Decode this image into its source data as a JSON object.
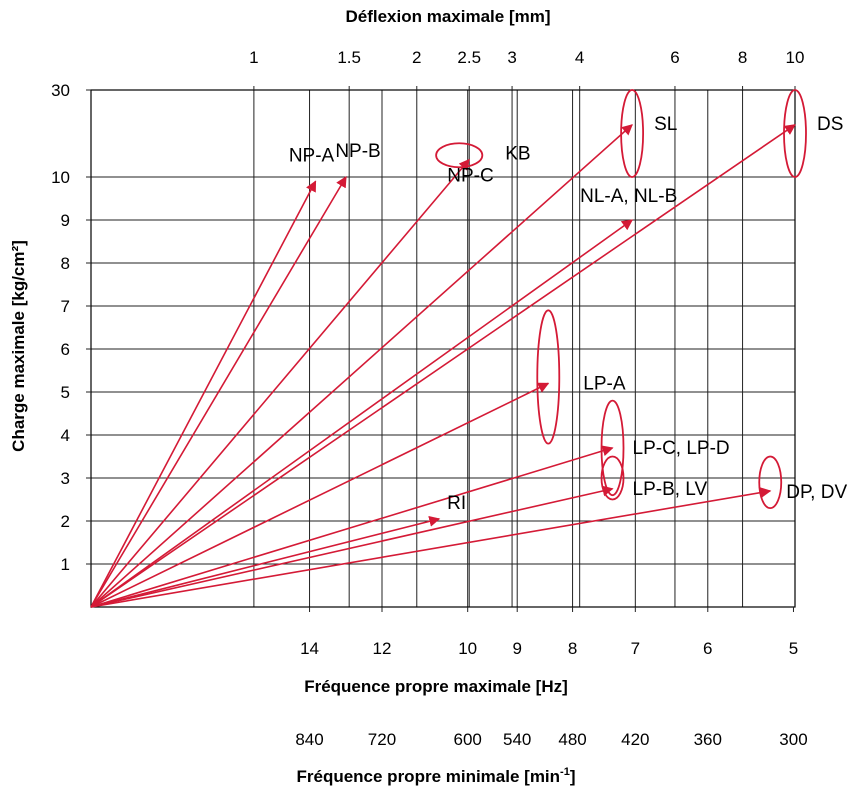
{
  "chart_data": {
    "type": "scatter",
    "title": "",
    "top_axis_title": "Déflexion maximale  [mm]",
    "top_ticks": [
      "1",
      "1.5",
      "2",
      "2.5",
      "3",
      "4",
      "6",
      "8",
      "10"
    ],
    "top_tick_values": [
      1,
      1.5,
      2,
      2.5,
      3,
      4,
      6,
      8,
      10
    ],
    "xlabel": "Fréquence propre maximale [Hz]",
    "x_ticks": [
      "14",
      "12",
      "10",
      "9",
      "8",
      "7",
      "6",
      "5"
    ],
    "x_tick_values": [
      14,
      12,
      10,
      9,
      8,
      7,
      6,
      5
    ],
    "x_scale": "frequency = 15.76 / sqrt(deflexion_mm)",
    "x_range_deflexion_mm": [
      0.5,
      10
    ],
    "second_x_axis_title": "Fréquence propre minimale [min",
    "second_x_axis_title_sup": "-1",
    "second_x_axis_title_end": "]",
    "rpm_ticks": [
      "840",
      "720",
      "600",
      "540",
      "480",
      "420",
      "360",
      "300"
    ],
    "rpm_tick_values": [
      840,
      720,
      600,
      540,
      480,
      420,
      360,
      300
    ],
    "ylabel": "Charge maximale  [kg/cm²]",
    "y_ticks": [
      "30",
      "10",
      "9",
      "8",
      "7",
      "6",
      "5",
      "4",
      "3",
      "2",
      "1"
    ],
    "y_tick_values": [
      30,
      10,
      9,
      8,
      7,
      6,
      5,
      4,
      3,
      2,
      1
    ],
    "y_scale": "linear 0–10, compressed segment 10–30",
    "ylim": [
      0,
      30
    ],
    "grid": true,
    "series": [
      {
        "name": "NP-A",
        "deflexion_mm": 1.3,
        "load": 9.9,
        "marker": "arrow"
      },
      {
        "name": "NP-B",
        "deflexion_mm": 1.48,
        "load": 10.0,
        "marker": "arrow"
      },
      {
        "name": "NP-C",
        "deflexion_mm": 2.5,
        "load": 14.0,
        "marker": "arrow"
      },
      {
        "name": "KB",
        "deflexion_mm": 2.5,
        "load": 15.0,
        "marker": "ellipse",
        "ellipse_span": [
          2.3,
          2.8
        ]
      },
      {
        "name": "SL",
        "deflexion_mm": 5.0,
        "load": 22.0,
        "marker": "arrow+ellipse",
        "ellipse_span": [
          10.0,
          30.0
        ]
      },
      {
        "name": "DS",
        "deflexion_mm": 10.0,
        "load": 22.0,
        "marker": "arrow+ellipse",
        "ellipse_span": [
          10.0,
          30.0
        ]
      },
      {
        "name": "NL-A, NL-B",
        "deflexion_mm": 5.0,
        "load": 9.0,
        "marker": "arrow"
      },
      {
        "name": "LP-A",
        "deflexion_mm": 3.5,
        "load": 5.2,
        "marker": "arrow+ellipse",
        "ellipse_span": [
          3.8,
          6.9
        ]
      },
      {
        "name": "LP-C, LP-D",
        "deflexion_mm": 4.6,
        "load": 3.7,
        "marker": "arrow+ellipse",
        "ellipse_span": [
          2.6,
          4.8
        ]
      },
      {
        "name": "LP-B, LV",
        "deflexion_mm": 4.6,
        "load": 2.75,
        "marker": "arrow+ellipse",
        "ellipse_span": [
          2.5,
          3.5
        ]
      },
      {
        "name": "RI",
        "deflexion_mm": 2.2,
        "load": 2.05,
        "marker": "arrow"
      },
      {
        "name": "DP, DV",
        "deflexion_mm": 9.0,
        "load": 2.7,
        "marker": "arrow+ellipse",
        "ellipse_span": [
          2.3,
          3.5
        ]
      }
    ],
    "colors": {
      "arrows": "#d41a36",
      "grid": "#222222",
      "text": "#000000"
    }
  }
}
